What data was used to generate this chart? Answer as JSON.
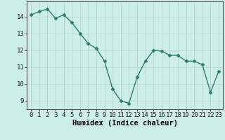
{
  "x": [
    0,
    1,
    2,
    3,
    4,
    5,
    6,
    7,
    8,
    9,
    10,
    11,
    12,
    13,
    14,
    15,
    16,
    17,
    18,
    19,
    20,
    21,
    22,
    23
  ],
  "y": [
    14.1,
    14.3,
    14.45,
    13.9,
    14.1,
    13.65,
    13.0,
    12.4,
    12.1,
    11.35,
    9.7,
    9.0,
    8.85,
    10.4,
    11.35,
    12.0,
    11.95,
    11.7,
    11.7,
    11.35,
    11.35,
    11.15,
    9.5,
    10.75
  ],
  "line_color": "#2e7d6e",
  "marker": "D",
  "marker_size": 2.5,
  "bg_color": "#cceee8",
  "grid_color": "#b8d8d0",
  "xlabel": "Humidex (Indice chaleur)",
  "ylim": [
    8.5,
    14.9
  ],
  "xlim": [
    -0.5,
    23.5
  ],
  "yticks": [
    9,
    10,
    11,
    12,
    13,
    14
  ],
  "xticks": [
    0,
    1,
    2,
    3,
    4,
    5,
    6,
    7,
    8,
    9,
    10,
    11,
    12,
    13,
    14,
    15,
    16,
    17,
    18,
    19,
    20,
    21,
    22,
    23
  ],
  "xlabel_fontsize": 7.5,
  "tick_fontsize": 6.5,
  "line_width": 1.0
}
